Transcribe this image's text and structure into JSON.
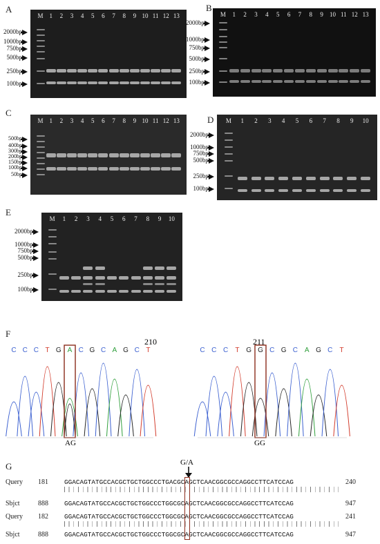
{
  "panels": {
    "A": {
      "letter": "A",
      "lanes": [
        "M",
        "1",
        "2",
        "3",
        "4",
        "5",
        "6",
        "7",
        "8",
        "9",
        "10",
        "11",
        "12",
        "13"
      ],
      "ladder": [
        "2000bp",
        "1000bp",
        "750bp",
        "500bp",
        "250bp",
        "100bp"
      ]
    },
    "B": {
      "letter": "B",
      "lanes": [
        "M",
        "1",
        "2",
        "3",
        "4",
        "5",
        "6",
        "7",
        "8",
        "9",
        "10",
        "11",
        "12",
        "13"
      ],
      "ladder": [
        "2000bp",
        "1000bp",
        "750bp",
        "500bp",
        "250bp",
        "100bp"
      ]
    },
    "C": {
      "letter": "C",
      "lanes": [
        "M",
        "1",
        "2",
        "3",
        "4",
        "5",
        "6",
        "7",
        "8",
        "9",
        "10",
        "11",
        "12",
        "13"
      ],
      "ladder": [
        "500bp",
        "400bp",
        "300bp",
        "200bp",
        "150bp",
        "100bp",
        "50bp"
      ]
    },
    "D": {
      "letter": "D",
      "lanes": [
        "M",
        "1",
        "2",
        "3",
        "4",
        "5",
        "6",
        "7",
        "8",
        "9",
        "10"
      ],
      "ladder": [
        "2000bp",
        "1000bp",
        "750bp",
        "500bp",
        "250bp",
        "100bp"
      ]
    },
    "E": {
      "letter": "E",
      "lanes": [
        "M",
        "1",
        "2",
        "3",
        "4",
        "5",
        "6",
        "7",
        "8",
        "9",
        "10"
      ],
      "ladder": [
        "2000bp",
        "1000bp",
        "750bp",
        "500bp",
        "250bp",
        "100bp"
      ]
    }
  },
  "panel_f": {
    "letter": "F",
    "left": {
      "position": "210",
      "bases": [
        "C",
        "C",
        "C",
        "T",
        "G",
        "A",
        "C",
        "G",
        "C",
        "A",
        "G",
        "C",
        "T"
      ],
      "genotype": "AG"
    },
    "right": {
      "position": "211",
      "bases": [
        "C",
        "C",
        "C",
        "T",
        "G",
        "G",
        "C",
        "G",
        "C",
        "A",
        "G",
        "C",
        "T"
      ],
      "genotype": "GG"
    }
  },
  "panel_g": {
    "letter": "G",
    "snp_label": "G/A",
    "rows": [
      {
        "label": "Query",
        "start": "181",
        "seq": "GGACAGTATGCCACGCTGCTGGCCCTGACGCAGCTCAACGGCGCCAGGCCTTCATCCAG",
        "end": "240"
      },
      {
        "label": "Sbjct",
        "start": "888",
        "seq": "GGACAGTATGCCACGCTGCTGGCCCTGGCGCAGCTCAACGGCGCCAGGCCTTCATCCAG",
        "end": "947"
      },
      {
        "label": "Query",
        "start": "182",
        "seq": "GGACAGTATGCCACGCTGCTGGCCCTGGCGCAGCTCAACGGCGCCAGGCCTTCATCCAG",
        "end": "241"
      },
      {
        "label": "Sbjct",
        "start": "888",
        "seq": "GGACAGTATGCCACGCTGCTGGCCCTGGCGCAGCTCAACGGCGCCAGGCCTTCATCCAG",
        "end": "947"
      }
    ]
  },
  "colors": {
    "A": "#2e9e3a",
    "C": "#3a5fd0",
    "G": "#222222",
    "T": "#d23a2a",
    "highlight": "#8a2a1a"
  }
}
